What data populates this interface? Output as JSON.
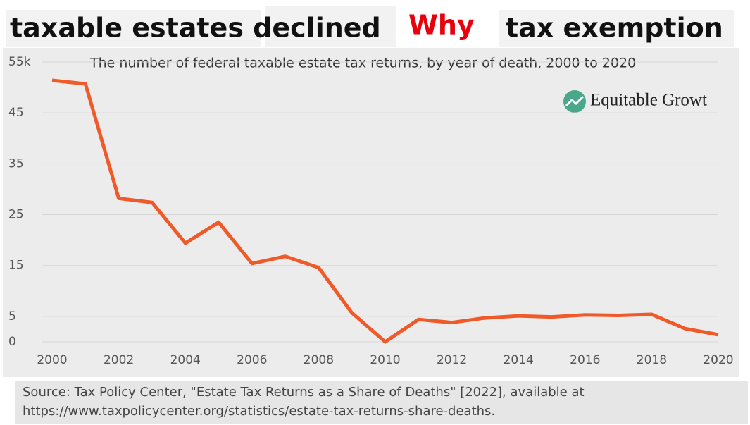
{
  "header": {
    "part1": "taxable estates declined",
    "part2": "Why",
    "part3": "tax exemption"
  },
  "brand": "Equitable Growt",
  "source": [
    "Source: Tax Policy Center, \"Estate Tax Returns as a Share of Deaths\" [2022], available at",
    "https://www.taxpolicycenter.org/statistics/estate-tax-returns-share-deaths."
  ],
  "chart_data": {
    "type": "line",
    "subtitle": "The number of federal taxable estate tax returns, by year of death, 2000 to 2020",
    "x": [
      2000,
      2001,
      2002,
      2003,
      2004,
      2005,
      2006,
      2007,
      2008,
      2009,
      2010,
      2011,
      2012,
      2013,
      2014,
      2015,
      2016,
      2017,
      2018,
      2019,
      2020
    ],
    "values": [
      51.4,
      50.7,
      28.2,
      27.4,
      19.4,
      23.5,
      15.4,
      16.8,
      14.6,
      5.7,
      0,
      4.4,
      3.8,
      4.7,
      5.1,
      4.9,
      5.3,
      5.2,
      5.4,
      2.6,
      1.4
    ],
    "color": "#f05a28",
    "xlim": [
      2000,
      2020
    ],
    "xticks": [
      2000,
      2002,
      2004,
      2006,
      2008,
      2010,
      2012,
      2014,
      2016,
      2018,
      2020
    ],
    "ylim": [
      0,
      55
    ],
    "yticks": [
      0,
      5,
      15,
      25,
      35,
      45,
      {
        "value": 55,
        "label": "55k"
      }
    ],
    "grid": true
  }
}
